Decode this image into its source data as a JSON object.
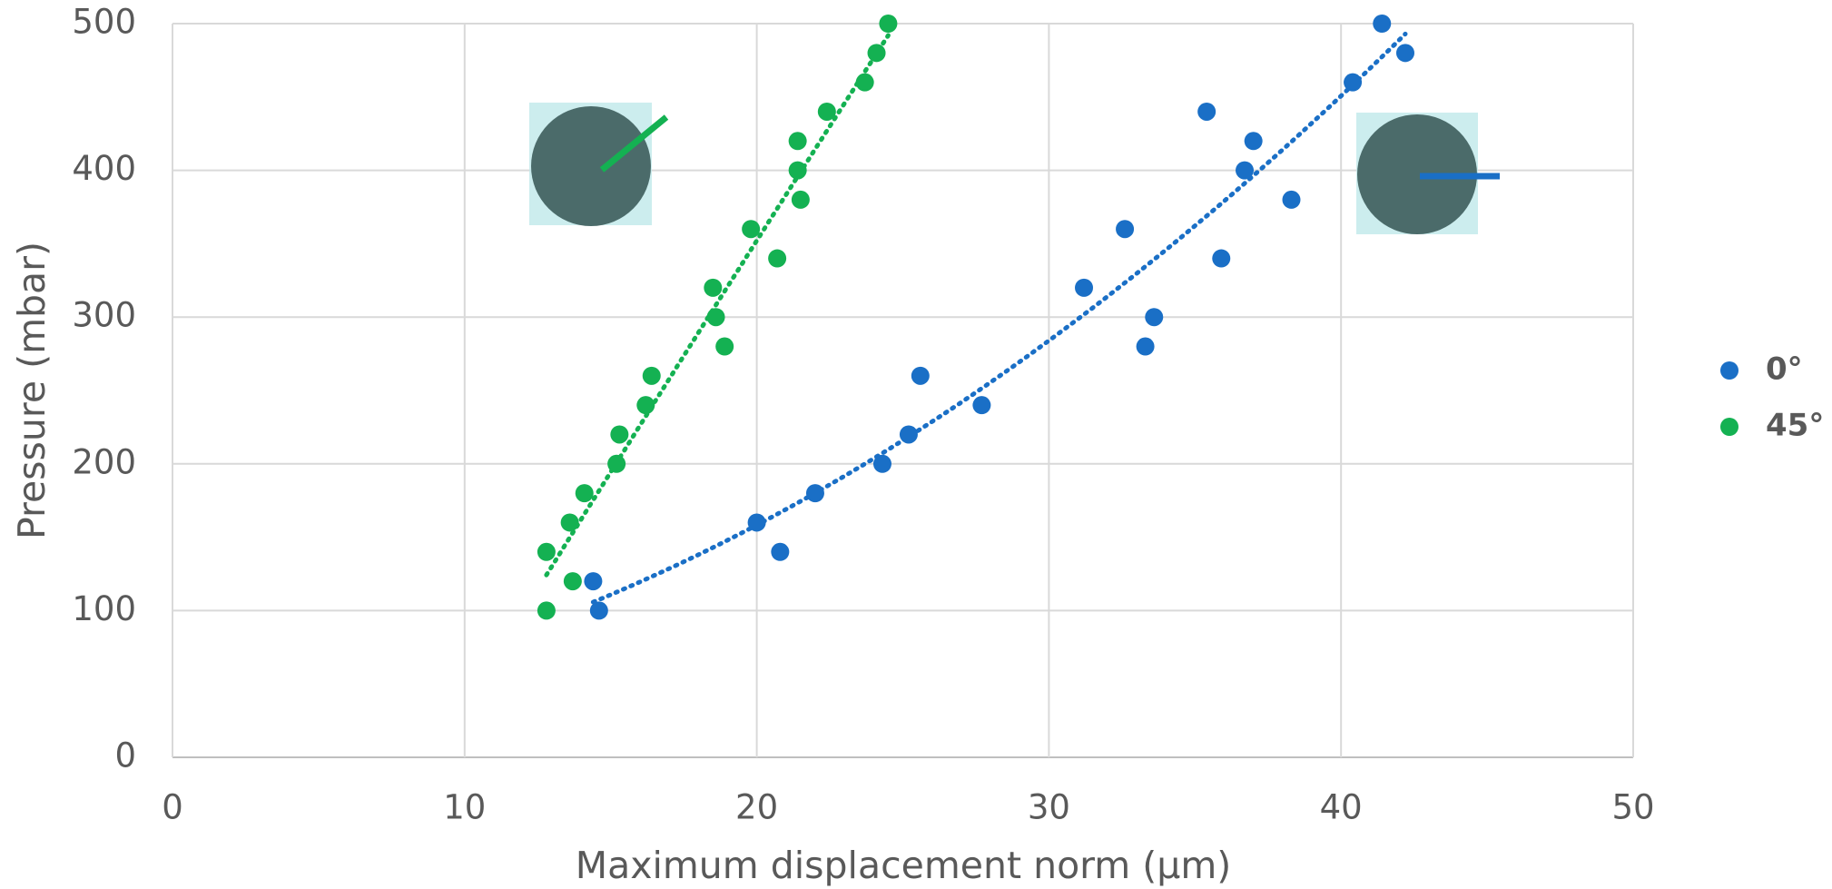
{
  "chart_data": {
    "type": "scatter",
    "x_label": "Maximum displacement norm (µm)",
    "y_label": "Pressure (mbar)",
    "xlim": [
      0,
      50
    ],
    "xticks": [
      0,
      10,
      20,
      30,
      40,
      50
    ],
    "ylim": [
      0,
      500
    ],
    "yticks": [
      0,
      100,
      200,
      300,
      400,
      500
    ],
    "grid": true,
    "legend": "right",
    "trendline": "polynomial",
    "series": [
      {
        "name": "0°",
        "color": "#1a6fc6",
        "x": [
          14.4,
          14.6,
          20.0,
          20.8,
          22.0,
          24.3,
          25.2,
          25.6,
          27.7,
          31.2,
          32.6,
          33.3,
          33.6,
          35.4,
          35.9,
          36.7,
          37.0,
          38.3,
          40.4,
          41.4,
          42.2
        ],
        "values": [
          120,
          100,
          160,
          140,
          180,
          200,
          220,
          260,
          240,
          320,
          360,
          280,
          300,
          440,
          340,
          400,
          420,
          380,
          460,
          500,
          480
        ]
      },
      {
        "name": "45°",
        "color": "#14b152",
        "x": [
          12.8,
          12.8,
          13.7,
          13.6,
          14.1,
          15.2,
          15.3,
          16.2,
          16.4,
          18.9,
          18.6,
          18.5,
          20.7,
          19.8,
          21.5,
          21.4,
          21.4,
          22.4,
          23.7,
          24.1,
          24.5
        ],
        "values": [
          100,
          140,
          120,
          160,
          180,
          200,
          220,
          240,
          260,
          280,
          300,
          320,
          340,
          360,
          380,
          400,
          420,
          440,
          460,
          480,
          500
        ]
      }
    ]
  }
}
